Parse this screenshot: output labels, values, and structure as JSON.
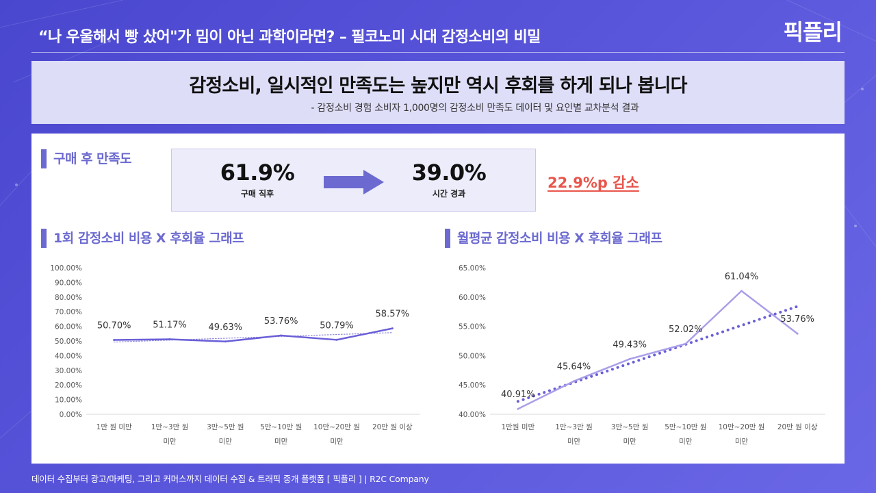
{
  "header": {
    "title": "“나 우울해서 빵 샀어\"가 밈이 아닌 과학이라면? – 필코노미 시대 감정소비의 비밀",
    "logo": "픽플리"
  },
  "headline": {
    "title": "감정소비, 일시적인 만족도는 높지만 역시 후회를 하게 되나 봅니다",
    "subtitle": "- 감정소비 경험 소비자 1,000명의 감정소비 만족도 데이터 및 요인별 교차분석 결과"
  },
  "satisfaction": {
    "section_title": "구매 후 만족도",
    "before_value": "61.9%",
    "before_label": "구매 직후",
    "after_value": "39.0%",
    "after_label": "시간 경과",
    "change": "22.9%p 감소",
    "colors": {
      "accent": "#6c6ad0",
      "decrease": "#e8554b"
    }
  },
  "chart_data": [
    {
      "type": "line",
      "title": "1회 감정소비 비용 X 후회율 그래프",
      "categories": [
        [
          "1만 원 미만"
        ],
        [
          "1만~3만 원",
          "미만"
        ],
        [
          "3만~5만 원",
          "미만"
        ],
        [
          "5만~10만 원",
          "미만"
        ],
        [
          "10만~20만 원",
          "미만"
        ],
        [
          "20만 원 이상"
        ]
      ],
      "series": [
        {
          "values": [
            50.7,
            51.17,
            49.63,
            53.76,
            50.79,
            58.57
          ],
          "labels": [
            "50.70%",
            "51.17%",
            "49.63%",
            "53.76%",
            "50.79%",
            "58.57%"
          ],
          "color": "#6a5fd8"
        }
      ],
      "trendline": {
        "style": "dotted",
        "from": 49.3,
        "to": 55.7
      },
      "ylim": [
        0,
        100
      ],
      "yticks": [
        "0.00%",
        "10.00%",
        "20.00%",
        "30.00%",
        "40.00%",
        "50.00%",
        "60.00%",
        "70.00%",
        "80.00%",
        "90.00%",
        "100.00%"
      ],
      "grid": false
    },
    {
      "type": "line",
      "title": "월평균 감정소비 비용 X 후회율 그래프",
      "categories": [
        [
          "1만원 미만"
        ],
        [
          "1만~3만 원",
          "미만"
        ],
        [
          "3만~5만 원",
          "미만"
        ],
        [
          "5만~10만 원",
          "미만"
        ],
        [
          "10만~20만 원",
          "미만"
        ],
        [
          "20만 원 이상"
        ]
      ],
      "series": [
        {
          "values": [
            40.91,
            45.64,
            49.43,
            52.02,
            61.04,
            53.76
          ],
          "labels": [
            "40.91%",
            "45.64%",
            "49.43%",
            "52.02%",
            "61.04%",
            "53.76%"
          ],
          "color": "#a99ee8"
        }
      ],
      "trendline": {
        "style": "dotted",
        "from": 42.2,
        "to": 58.4
      },
      "ylim": [
        40,
        65
      ],
      "yticks": [
        "40.00%",
        "45.00%",
        "50.00%",
        "55.00%",
        "60.00%",
        "65.00%"
      ],
      "grid": false
    }
  ],
  "footer": {
    "text": "데이터 수집부터 광고/마케팅, 그리고 커머스까지 데이터 수집 & 트래픽 중개 플랫폼 [ 픽플리 ]  |  R2C Company"
  }
}
